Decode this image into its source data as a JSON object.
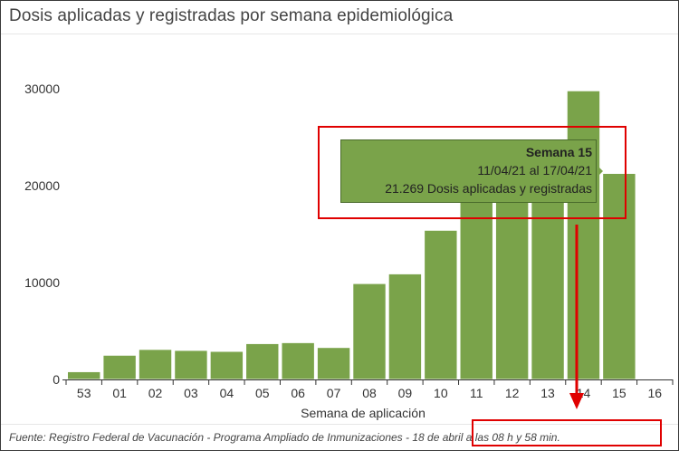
{
  "title": "Dosis aplicadas y registradas por semana epidemiológica",
  "source_text": "Fuente: Registro Federal de Vacunación - Programa Ampliado de Inmunizaciones - 18 de abril a las 08 h y 58 min.",
  "tooltip": {
    "title": "Semana 15",
    "date_range": "11/04/21 al 17/04/21",
    "value_text": "21.269 Dosis aplicadas y registradas"
  },
  "colors": {
    "bar": "#7aa34a",
    "bar_stroke": "#ffffff",
    "highlight": "#e00000"
  },
  "chart_data": {
    "type": "bar",
    "title": "Dosis aplicadas y registradas por semana epidemiológica",
    "xlabel": "Semana de aplicación",
    "ylabel": "",
    "categories": [
      "53",
      "01",
      "02",
      "03",
      "04",
      "05",
      "06",
      "07",
      "08",
      "09",
      "10",
      "11",
      "12",
      "13",
      "14",
      "15",
      "16"
    ],
    "values": [
      800,
      2500,
      3100,
      3000,
      2900,
      3700,
      3800,
      3300,
      9900,
      10900,
      15400,
      19000,
      19500,
      19000,
      29800,
      21269,
      null
    ],
    "yticks": [
      0,
      10000,
      20000,
      30000
    ],
    "ylim": [
      0,
      33000
    ],
    "grid": false,
    "legend": "none"
  }
}
